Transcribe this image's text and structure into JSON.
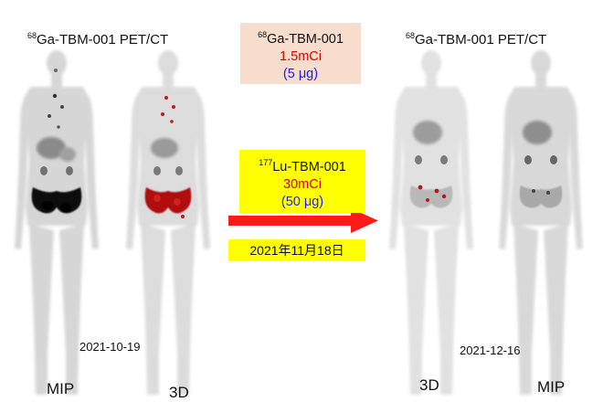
{
  "header": {
    "left_iso": "68",
    "left_label": "Ga-TBM-001  PET/CT",
    "right_iso": "68",
    "right_label": "Ga-TBM-001  PET/CT"
  },
  "box_ga": {
    "iso": "68",
    "name": "Ga-TBM-001",
    "dose": "1.5mCi",
    "mass": "(5 μg)",
    "bg_color": "#f8dccc"
  },
  "box_lu": {
    "iso": "177",
    "name": "Lu-TBM-001",
    "dose": "30mCi",
    "mass": "(50 μg)",
    "bg_color": "#ffff00"
  },
  "date_box": {
    "text": "2021年11月18日",
    "bg_color": "#ffff00"
  },
  "arrow_color": "#ff1a1a",
  "scan_dates": {
    "before": "2021-10-19",
    "after": "2021-12-16"
  },
  "view_labels": {
    "before_mip": "MIP",
    "before_3d": "3D",
    "after_3d": "3D",
    "after_mip": "MIP"
  },
  "figures": [
    {
      "name": "before-mip",
      "uptake": "high"
    },
    {
      "name": "before-3d",
      "uptake": "high"
    },
    {
      "name": "after-3d",
      "uptake": "low"
    },
    {
      "name": "after-mip",
      "uptake": "low"
    }
  ]
}
